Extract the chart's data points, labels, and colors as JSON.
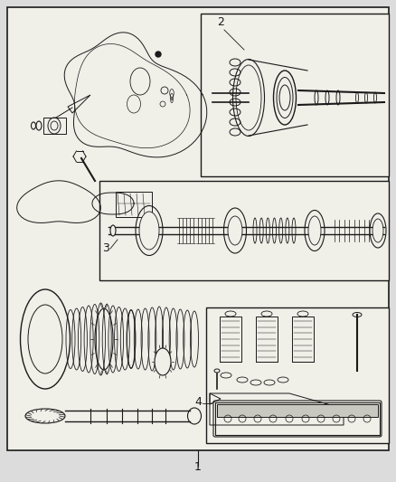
{
  "bg_page": "#dcdcdc",
  "bg_box": "#f0efe8",
  "lc": "#1a1a1a",
  "figsize": [
    4.38,
    5.33
  ],
  "dpi": 100,
  "label_fs": 9
}
